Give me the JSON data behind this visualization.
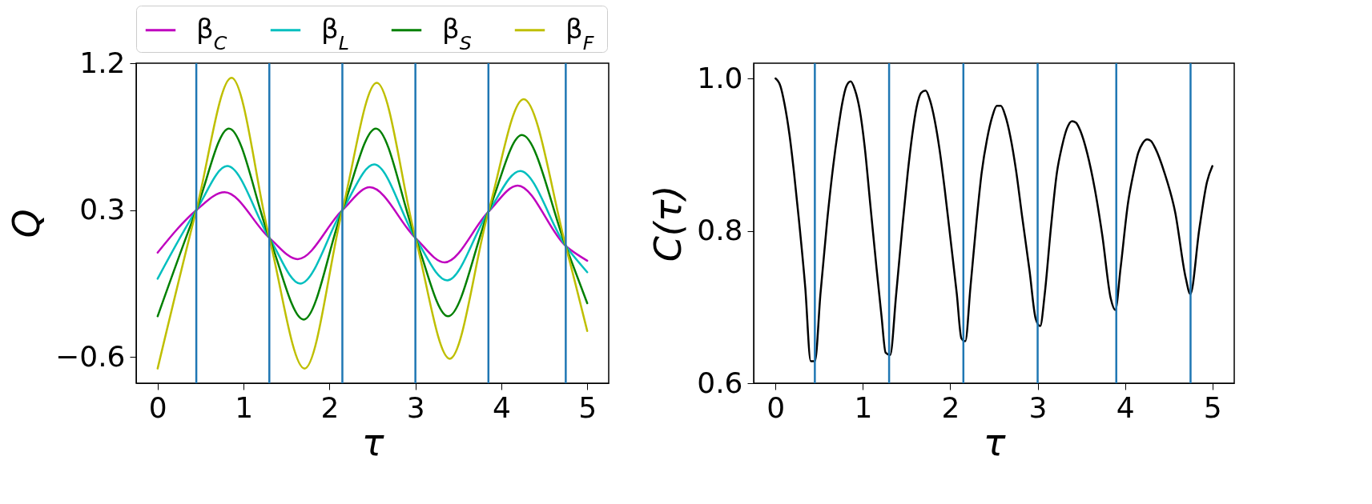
{
  "chart_data": [
    {
      "type": "line",
      "xlabel": "τ",
      "ylabel": "Q",
      "xlim": [
        -0.25,
        5.25
      ],
      "ylim": [
        -0.76,
        1.2
      ],
      "xticks": [
        0,
        1,
        2,
        3,
        4,
        5
      ],
      "yticks": [
        {
          "value": -0.6,
          "label": "−0.6"
        },
        0.3,
        1.2
      ],
      "grid": false,
      "legend": "top",
      "line_style": "solid",
      "marker": "none",
      "series": [
        {
          "name": "β$_{C}$",
          "color": "#bf00bf",
          "x": [
            0,
            0.45,
            0.78,
            1.3,
            1.63,
            2.15,
            2.47,
            3.0,
            3.34,
            3.85,
            4.19,
            4.75,
            5
          ],
          "values": [
            0.04,
            0.3,
            0.41,
            0.13,
            0.0,
            0.3,
            0.44,
            0.13,
            -0.02,
            0.29,
            0.45,
            0.08,
            -0.01
          ]
        },
        {
          "name": "β$_{L}$",
          "color": "#00bfbf",
          "x": [
            0,
            0.45,
            0.81,
            1.3,
            1.66,
            2.15,
            2.52,
            3.0,
            3.37,
            3.85,
            4.22,
            4.75,
            5
          ],
          "values": [
            -0.12,
            0.3,
            0.57,
            0.13,
            -0.15,
            0.3,
            0.58,
            0.13,
            -0.13,
            0.29,
            0.54,
            0.08,
            -0.08
          ]
        },
        {
          "name": "β$_{S}$",
          "color": "#008000",
          "x": [
            0,
            0.45,
            0.83,
            1.3,
            1.7,
            2.15,
            2.54,
            3.0,
            3.38,
            3.85,
            4.24,
            4.75,
            5
          ],
          "values": [
            -0.35,
            0.3,
            0.8,
            0.13,
            -0.37,
            0.3,
            0.8,
            0.13,
            -0.35,
            0.29,
            0.76,
            0.08,
            -0.27
          ]
        },
        {
          "name": "β$_{F}$",
          "color": "#bfbf00",
          "x": [
            0,
            0.45,
            0.86,
            1.3,
            1.71,
            2.15,
            2.55,
            3.0,
            3.4,
            3.85,
            4.26,
            4.75,
            5
          ],
          "values": [
            -0.67,
            0.3,
            1.11,
            0.13,
            -0.67,
            0.3,
            1.08,
            0.13,
            -0.61,
            0.29,
            0.98,
            0.08,
            -0.44
          ]
        }
      ],
      "ref_lines": [
        {
          "axis": "x",
          "value": 0.45,
          "color": "#1f77b4"
        },
        {
          "axis": "x",
          "value": 1.3,
          "color": "#1f77b4"
        },
        {
          "axis": "x",
          "value": 2.15,
          "color": "#1f77b4"
        },
        {
          "axis": "x",
          "value": 3.0,
          "color": "#1f77b4"
        },
        {
          "axis": "x",
          "value": 3.85,
          "color": "#1f77b4"
        },
        {
          "axis": "x",
          "value": 4.75,
          "color": "#1f77b4"
        }
      ]
    },
    {
      "type": "line",
      "xlabel": "τ",
      "ylabel": "C(τ)",
      "xlim": [
        -0.25,
        5.25
      ],
      "ylim": [
        0.6,
        1.02
      ],
      "xticks": [
        0,
        1,
        2,
        3,
        4,
        5
      ],
      "yticks": [
        {
          "value": 0.6,
          "label": "0.6"
        },
        {
          "value": 0.8,
          "label": "0.8"
        },
        {
          "value": 1.0,
          "label": "1.0"
        }
      ],
      "grid": false,
      "line_style": "solid",
      "marker": "none",
      "series": [
        {
          "color": "#000000",
          "x": [
            0,
            0.056,
            0.104,
            0.16,
            0.212,
            0.27,
            0.34,
            0.403,
            0.451,
            0.514,
            0.59,
            0.66,
            0.715,
            0.763,
            0.812,
            0.86,
            0.909,
            0.965,
            1.02,
            1.086,
            1.156,
            1.214,
            1.26,
            1.312,
            1.381,
            1.45,
            1.513,
            1.565,
            1.614,
            1.666,
            1.718,
            1.766,
            1.822,
            1.877,
            1.936,
            2.006,
            2.075,
            2.127,
            2.172,
            2.231,
            2.3,
            2.359,
            2.422,
            2.481,
            2.533,
            2.578,
            2.63,
            2.689,
            2.752,
            2.821,
            2.908,
            2.977,
            3.029,
            3.081,
            3.151,
            3.22,
            3.279,
            3.334,
            3.393,
            3.438,
            3.49,
            3.567,
            3.654,
            3.74,
            3.837,
            3.889,
            3.949,
            4.035,
            4.094,
            4.15,
            4.202,
            4.254,
            4.296,
            4.348,
            4.452,
            4.573,
            4.695,
            4.747,
            4.851,
            4.938,
            5.0
          ],
          "values": [
            1.0,
            0.99,
            0.966,
            0.926,
            0.876,
            0.812,
            0.726,
            0.629,
            0.629,
            0.717,
            0.812,
            0.885,
            0.932,
            0.967,
            0.99,
            0.996,
            0.985,
            0.958,
            0.911,
            0.833,
            0.751,
            0.687,
            0.64,
            0.637,
            0.717,
            0.803,
            0.876,
            0.926,
            0.962,
            0.981,
            0.984,
            0.972,
            0.945,
            0.907,
            0.855,
            0.786,
            0.717,
            0.659,
            0.655,
            0.726,
            0.812,
            0.876,
            0.921,
            0.95,
            0.964,
            0.964,
            0.951,
            0.923,
            0.88,
            0.82,
            0.747,
            0.685,
            0.675,
            0.717,
            0.803,
            0.876,
            0.911,
            0.934,
            0.944,
            0.942,
            0.931,
            0.902,
            0.855,
            0.794,
            0.711,
            0.696,
            0.751,
            0.837,
            0.874,
            0.902,
            0.915,
            0.92,
            0.918,
            0.908,
            0.876,
            0.825,
            0.738,
            0.717,
            0.803,
            0.864,
            0.885
          ]
        }
      ],
      "ref_lines": [
        {
          "axis": "x",
          "value": 0.45,
          "color": "#1f77b4"
        },
        {
          "axis": "x",
          "value": 1.3,
          "color": "#1f77b4"
        },
        {
          "axis": "x",
          "value": 2.15,
          "color": "#1f77b4"
        },
        {
          "axis": "x",
          "value": 3.0,
          "color": "#1f77b4"
        },
        {
          "axis": "x",
          "value": 3.9,
          "color": "#1f77b4"
        },
        {
          "axis": "x",
          "value": 4.75,
          "color": "#1f77b4"
        }
      ]
    }
  ]
}
